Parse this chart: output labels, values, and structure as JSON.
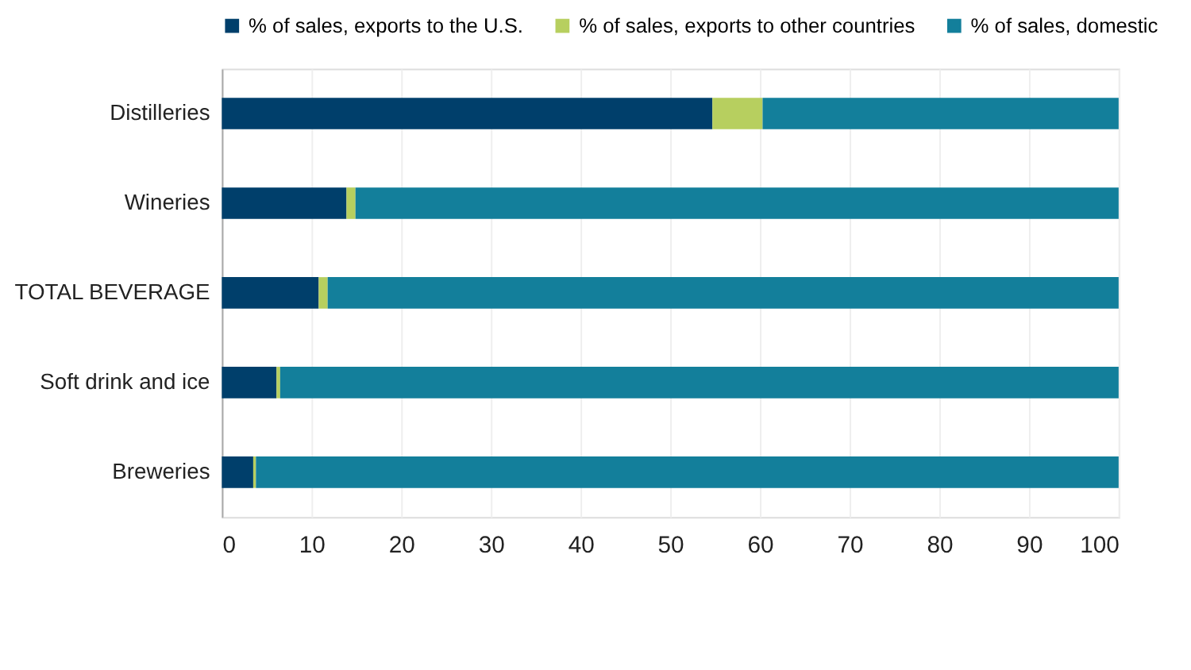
{
  "chart_data": {
    "type": "bar",
    "orientation": "horizontal",
    "stacked": true,
    "categories": [
      "Distilleries",
      "Wineries",
      "TOTAL BEVERAGE",
      "Soft drink and ice",
      "Breweries"
    ],
    "series": [
      {
        "name": "% of sales, exports to the U.S.",
        "color": "#003f6b",
        "values": [
          54.7,
          13.9,
          10.8,
          6.1,
          3.5
        ]
      },
      {
        "name": "% of sales, exports to other countries",
        "color": "#b7cf5f",
        "values": [
          5.6,
          1.0,
          1.0,
          0.4,
          0.3
        ]
      },
      {
        "name": "% of sales, domestic",
        "color": "#137f9b",
        "values": [
          39.7,
          85.1,
          88.2,
          93.5,
          96.2
        ]
      }
    ],
    "xlim": [
      0,
      100
    ],
    "xticks": [
      0,
      10,
      20,
      30,
      40,
      50,
      60,
      70,
      80,
      90,
      100
    ],
    "grid": "x",
    "legend": "top"
  }
}
